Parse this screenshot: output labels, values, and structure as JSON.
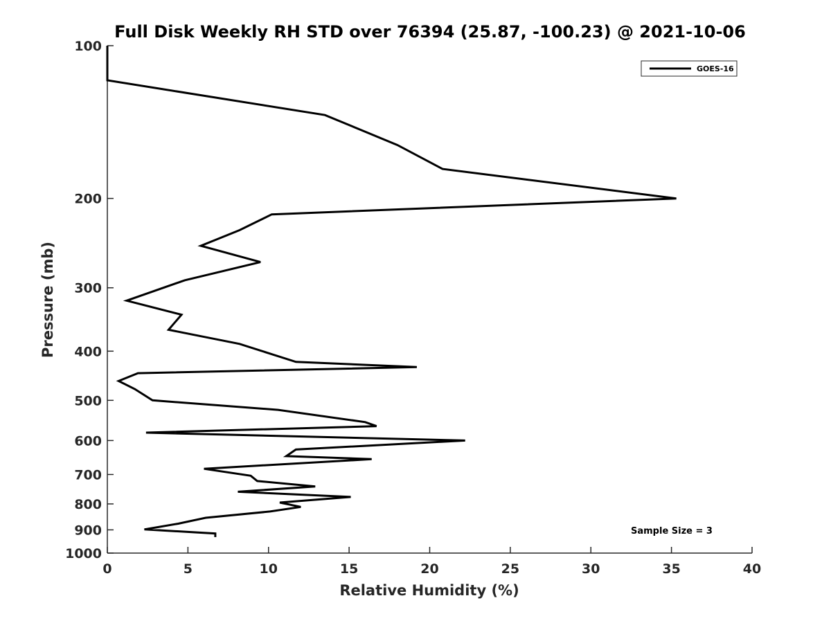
{
  "chart_data": {
    "type": "line",
    "title": "Full Disk Weekly RH STD over 76394 (25.87, -100.23) @ 2021-10-06",
    "xlabel": "Relative Humidity (%)",
    "ylabel": "Pressure (mb)",
    "xlim": [
      0,
      40
    ],
    "ylim": [
      100,
      1000
    ],
    "y_scale": "log",
    "y_reversed": true,
    "grid": false,
    "x_ticks": [
      0,
      5,
      10,
      15,
      20,
      25,
      30,
      35,
      40
    ],
    "y_ticks": [
      100,
      200,
      300,
      400,
      500,
      600,
      700,
      800,
      900,
      1000
    ],
    "legend": {
      "location": "top-right",
      "entries": [
        "GOES-16"
      ]
    },
    "annotation": "Sample Size = 3",
    "series": [
      {
        "name": "GOES-16",
        "color": "#000000",
        "x": [
          0,
          0,
          13.5,
          18,
          20.8,
          35.3,
          10.2,
          8.2,
          5.8,
          9.5,
          4.8,
          1.2,
          4.6,
          3.8,
          8.2,
          11.7,
          19.2,
          1.9,
          0.7,
          1.7,
          2.8,
          10.6,
          16,
          16.7,
          2.4,
          22.2,
          11.7,
          11.1,
          16.4,
          6,
          8.9,
          9.3,
          12.9,
          8.1,
          15.1,
          10.7,
          12,
          10.1,
          6.1,
          4.4,
          2.3,
          6.7,
          6.7
        ],
        "y": [
          100,
          117,
          137,
          157,
          175,
          200,
          215,
          231,
          248,
          267,
          290,
          318,
          339,
          363,
          387,
          420,
          430,
          442,
          458,
          475,
          500,
          522,
          552,
          562,
          579,
          600,
          625,
          644,
          653,
          682,
          704,
          721,
          739,
          757,
          775,
          795,
          811,
          828,
          852,
          875,
          898,
          915,
          930
        ]
      }
    ]
  }
}
